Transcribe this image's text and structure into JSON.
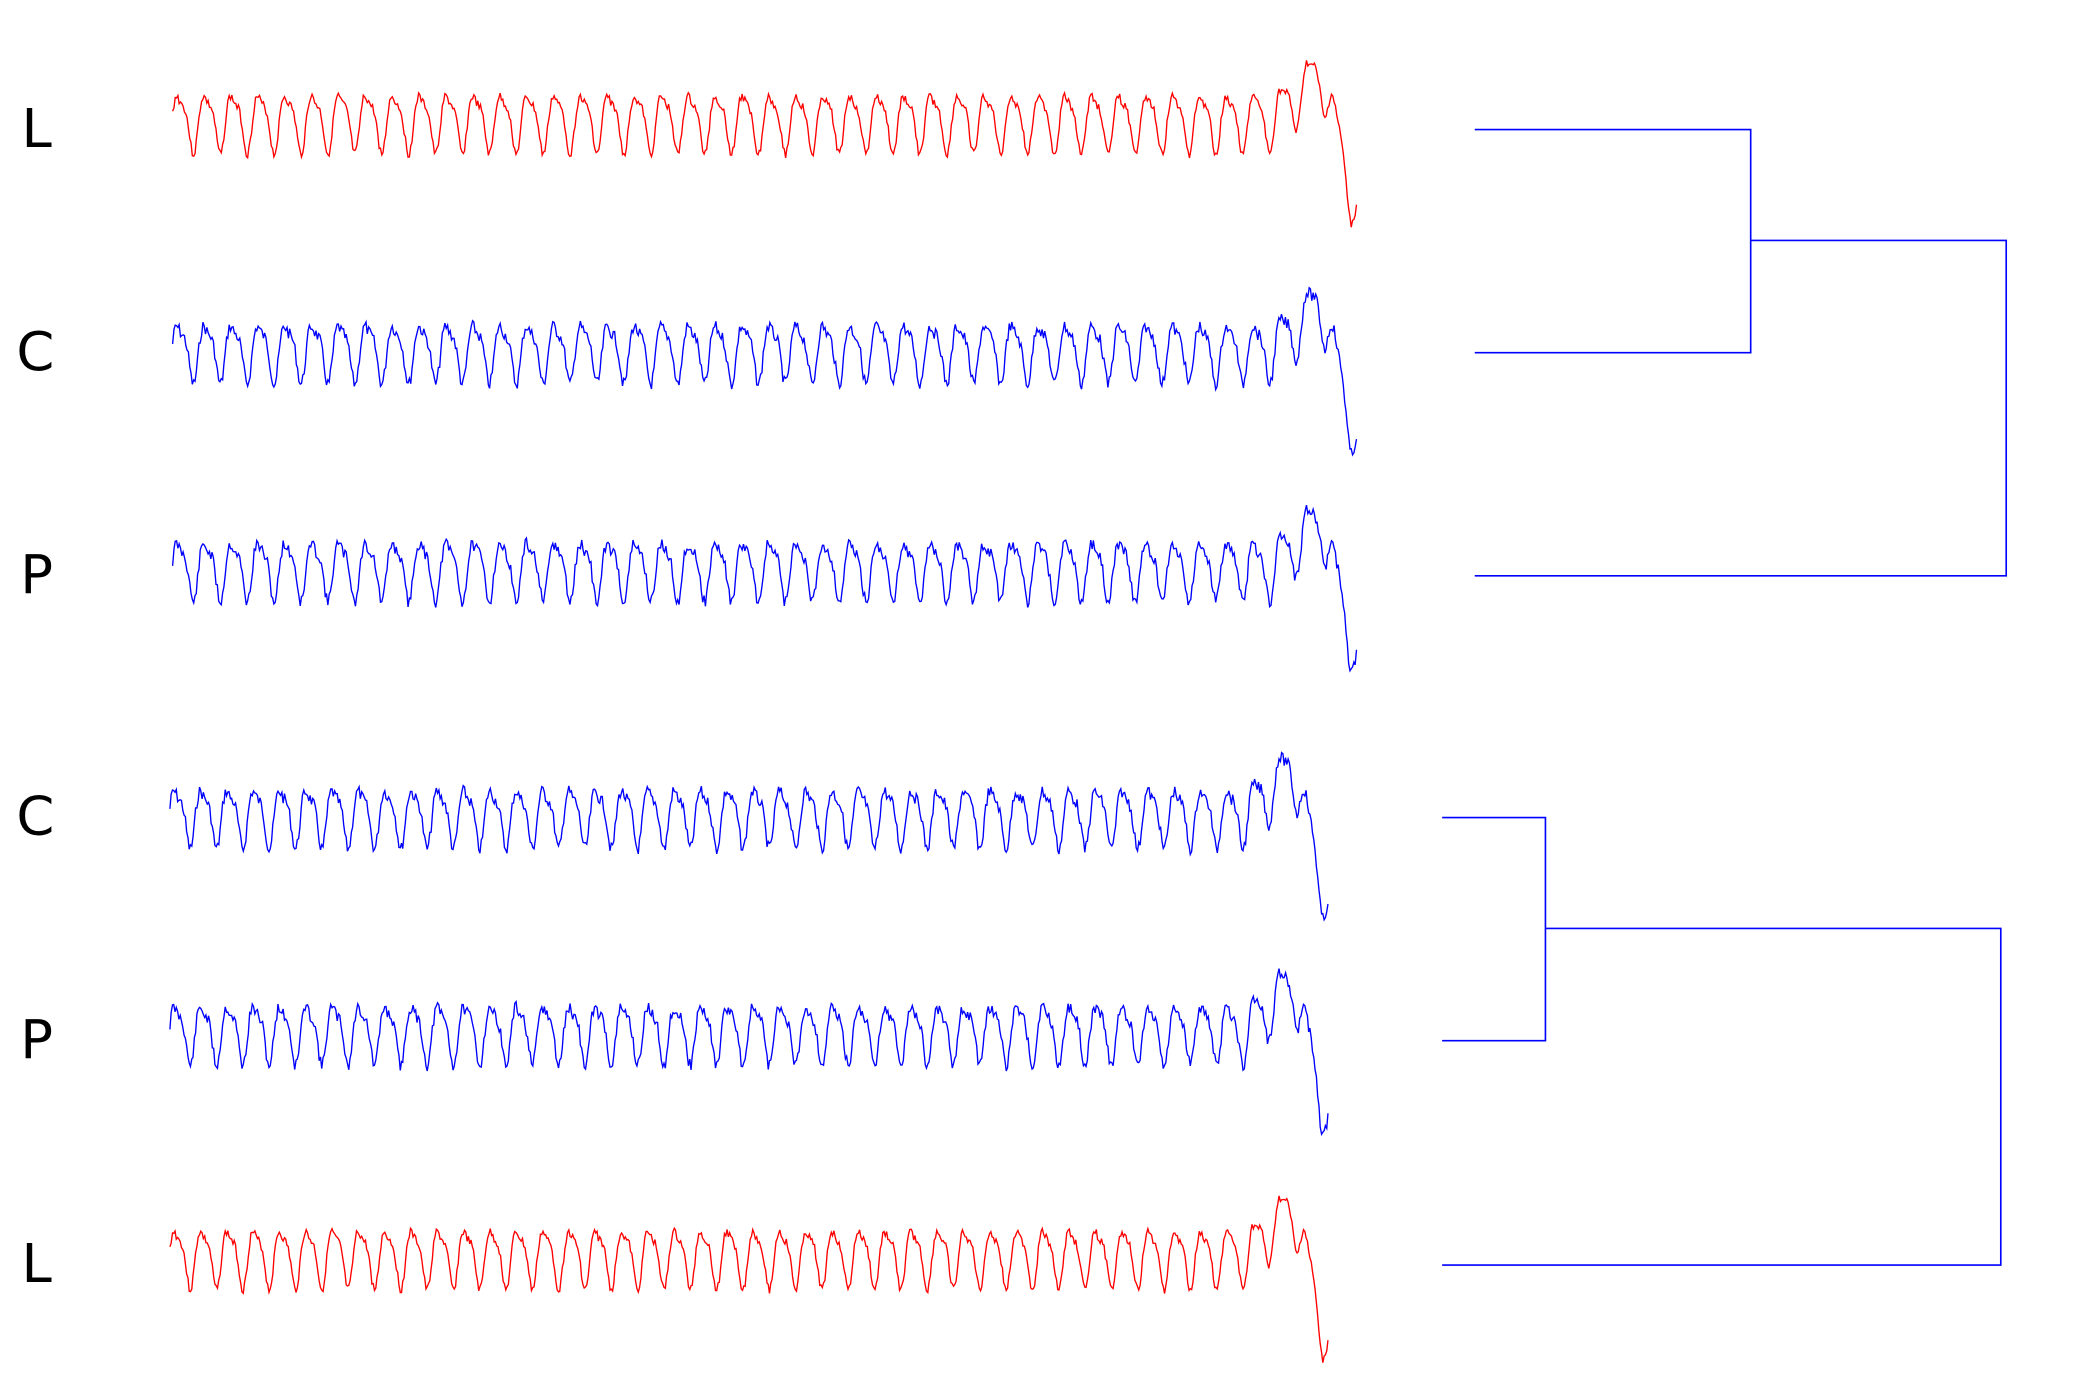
{
  "labels": [
    "L",
    "C",
    "P",
    "C",
    "P",
    "L"
  ]
}
